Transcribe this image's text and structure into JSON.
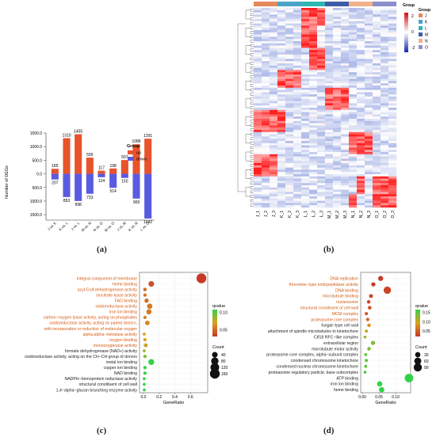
{
  "chart_data": [
    {
      "panel": "(a)",
      "type": "bar",
      "ylabel": "Number of DEGs",
      "categories": [
        "J vs. K",
        "K vs. L",
        "J vs. L",
        "M vs. N",
        "N vs. O",
        "M vs. O",
        "J vs. M",
        "K vs. N",
        "L vs. O"
      ],
      "series": [
        {
          "name": "up",
          "color": "#e8532b",
          "values": [
            185,
            1310,
            1455,
            595,
            117,
            198,
            507,
            1086,
            1291
          ]
        },
        {
          "name": "down",
          "color": "#5a5be0",
          "values": [
            207,
            853,
            998,
            733,
            124,
            514,
            150,
            909,
            1642
          ]
        }
      ],
      "yticks": [
        "1500.0",
        "1000.0",
        "500.0",
        "0.0",
        "500.0",
        "1000.0",
        "1500.0"
      ],
      "ylim": [
        -1700,
        1500
      ],
      "legend_title": "Group",
      "legend": [
        "up",
        "down"
      ]
    },
    {
      "panel": "(b)",
      "type": "heatmap",
      "columns": [
        "J_1",
        "J_2",
        "J_3",
        "K_1",
        "K_2",
        "K_3",
        "L_1",
        "L_2",
        "L_3",
        "M_1",
        "M_2",
        "M_3",
        "N_1",
        "N_2",
        "N_3",
        "O_1",
        "O_2",
        "O_3"
      ],
      "groups": [
        {
          "name": "J",
          "color": "#e58a5c"
        },
        {
          "name": "K",
          "color": "#4aa3c9"
        },
        {
          "name": "L",
          "color": "#30b7b3"
        },
        {
          "name": "M",
          "color": "#3f5ca8"
        },
        {
          "name": "N",
          "color": "#f0b38a"
        },
        {
          "name": "O",
          "color": "#8c8fc9"
        }
      ],
      "group_title": "Group",
      "scale_ticks": [
        "2",
        "0",
        "-2"
      ]
    },
    {
      "panel": "(c)",
      "type": "scatter",
      "xlabel": "GeneRatio",
      "xticks": [
        "0.0",
        "0.2",
        "0.4",
        "0.6"
      ],
      "xlim": [
        -0.05,
        0.82
      ],
      "terms": [
        {
          "label": "integral component of membrane",
          "x": 0.74,
          "count": 160,
          "q": 0.03,
          "sig": true
        },
        {
          "label": "heme binding",
          "x": 0.1,
          "count": 40,
          "q": 0.04,
          "sig": true
        },
        {
          "label": "acyl-CoA dehydrogenase activity",
          "x": 0.02,
          "count": 10,
          "q": 0.05,
          "sig": true
        },
        {
          "label": "isocitrate lyase activity",
          "x": 0.02,
          "count": 8,
          "q": 0.05,
          "sig": true
        },
        {
          "label": "FAD binding",
          "x": 0.04,
          "count": 18,
          "q": 0.05,
          "sig": true
        },
        {
          "label": "oxidoreductase activity",
          "x": 0.08,
          "count": 35,
          "q": 0.055,
          "sig": true
        },
        {
          "label": "iron ion binding",
          "x": 0.07,
          "count": 32,
          "q": 0.055,
          "sig": true
        },
        {
          "label": "carbon−oxygen lyase activity, acting on phosphates",
          "x": 0.02,
          "count": 8,
          "q": 0.06,
          "sig": true
        },
        {
          "label": "oxidoreductase activity, acting on paired donors,",
          "x": 0.05,
          "count": 22,
          "q": 0.06,
          "sig": true
        },
        {
          "label": "with incorporation or reduction of molecular oxygen",
          "x": null,
          "count": null,
          "q": null,
          "sig": true
        },
        {
          "label": "alpha,alpha−trehalase activity",
          "x": 0.01,
          "count": 6,
          "q": 0.07,
          "sig": true
        },
        {
          "label": "oxygen binding",
          "x": 0.02,
          "count": 8,
          "q": 0.07,
          "sig": true
        },
        {
          "label": "monooxygenase activity",
          "x": 0.03,
          "count": 14,
          "q": 0.075,
          "sig": true
        },
        {
          "label": "formate dehydrogenase (NAD+) activity",
          "x": 0.01,
          "count": 5,
          "q": 0.085,
          "sig": false
        },
        {
          "label": "oxidoreductase activity, acting on the CH−CH group of donors",
          "x": 0.02,
          "count": 8,
          "q": 0.09,
          "sig": false
        },
        {
          "label": "metal ion binding",
          "x": 0.1,
          "count": 45,
          "q": 0.11,
          "sig": false
        },
        {
          "label": "copper ion binding",
          "x": 0.02,
          "count": 8,
          "q": 0.11,
          "sig": false
        },
        {
          "label": "NAD binding",
          "x": 0.02,
          "count": 8,
          "q": 0.11,
          "sig": false
        },
        {
          "label": "NADPH−hemoprotein reductase activity",
          "x": 0.01,
          "count": 5,
          "q": 0.11,
          "sig": false
        },
        {
          "label": "structural constituent of cell wall",
          "x": 0.01,
          "count": 5,
          "q": 0.11,
          "sig": false
        },
        {
          "label": "1,4−alpha−glucan branching enzyme activity",
          "x": 0.01,
          "count": 5,
          "q": 0.11,
          "sig": false
        }
      ],
      "qvalue_title": "qvalue",
      "qvalue_ticks": [
        "0.10",
        "0.05"
      ],
      "count_title": "Count",
      "count_ticks": [
        "40",
        "80",
        "120",
        "160"
      ]
    },
    {
      "panel": "(d)",
      "type": "scatter",
      "xlabel": "GeneRatio",
      "xticks": [
        "0.00",
        "0.05",
        "0.10"
      ],
      "xlim": [
        -0.005,
        0.145
      ],
      "terms": [
        {
          "label": "DNA replication",
          "x": 0.055,
          "count": 25,
          "q": 0.02,
          "sig": true
        },
        {
          "label": "threonine−type endopeptidase activity",
          "x": 0.033,
          "count": 15,
          "q": 0.02,
          "sig": true
        },
        {
          "label": "DNA binding",
          "x": 0.075,
          "count": 70,
          "q": 0.03,
          "sig": true
        },
        {
          "label": "microtubule binding",
          "x": 0.026,
          "count": 12,
          "q": 0.03,
          "sig": true
        },
        {
          "label": "nucleosome",
          "x": 0.019,
          "count": 9,
          "q": 0.03,
          "sig": true
        },
        {
          "label": "structural constituent of cell wall",
          "x": 0.022,
          "count": 10,
          "q": 0.04,
          "sig": true
        },
        {
          "label": "MCM complex",
          "x": 0.012,
          "count": 6,
          "q": 0.04,
          "sig": true
        },
        {
          "label": "proteasome core complex",
          "x": 0.016,
          "count": 8,
          "q": 0.05,
          "sig": true
        },
        {
          "label": "fungal−type cell wall",
          "x": 0.02,
          "count": 9,
          "q": 0.08,
          "sig": false
        },
        {
          "label": "attachment of spindle microtubules to kinetochore",
          "x": 0.012,
          "count": 6,
          "q": 0.1,
          "sig": false
        },
        {
          "label": "Ctf18 RFC−like complex",
          "x": 0.008,
          "count": 4,
          "q": 0.11,
          "sig": false
        },
        {
          "label": "extracellular region",
          "x": 0.032,
          "count": 15,
          "q": 0.13,
          "sig": false
        },
        {
          "label": "microtubule motor activity",
          "x": 0.02,
          "count": 9,
          "q": 0.13,
          "sig": false
        },
        {
          "label": "proteasome core complex, alpha−subunit complex",
          "x": 0.01,
          "count": 5,
          "q": 0.14,
          "sig": false
        },
        {
          "label": "condensed chromosome kinetochore",
          "x": 0.012,
          "count": 6,
          "q": 0.14,
          "sig": false
        },
        {
          "label": "condensed nuclear chromosome kinetochore",
          "x": 0.01,
          "count": 5,
          "q": 0.14,
          "sig": false
        },
        {
          "label": "proteasome regulatory particle, base subcomplex",
          "x": 0.008,
          "count": 4,
          "q": 0.15,
          "sig": false
        },
        {
          "label": "ATP binding",
          "x": 0.14,
          "count": 100,
          "q": 0.16,
          "sig": false
        },
        {
          "label": "iron ion binding",
          "x": 0.052,
          "count": 30,
          "q": 0.16,
          "sig": false
        },
        {
          "label": "heme binding",
          "x": 0.058,
          "count": 30,
          "q": 0.16,
          "sig": false
        }
      ],
      "qvalue_title": "qvalue",
      "qvalue_ticks": [
        "0.15",
        "0.10",
        "0.05"
      ],
      "count_title": "Count",
      "count_ticks": [
        "30",
        "60",
        "90"
      ]
    }
  ],
  "captions": {
    "a": "(a)",
    "b": "(b)",
    "c": "(c)",
    "d": "(d)"
  },
  "colors": {
    "qlow": "#c0392b",
    "qmid": "#e0a020",
    "qhigh": "#2ecc40",
    "sig_text": "#d55a12",
    "plain_text": "#222222"
  }
}
